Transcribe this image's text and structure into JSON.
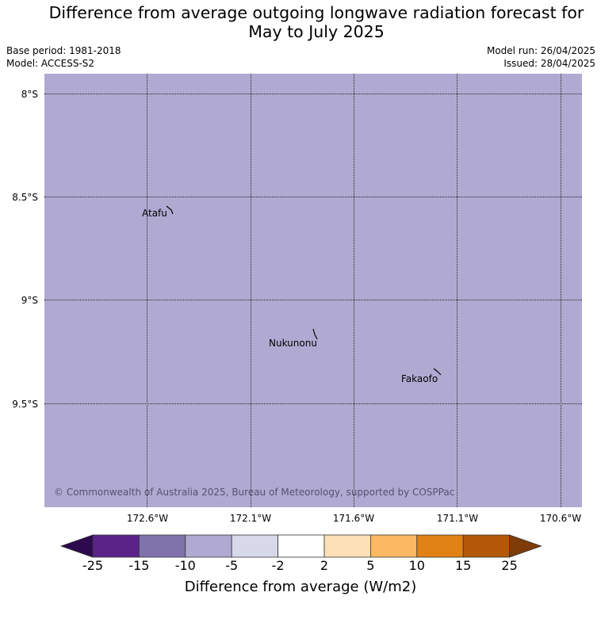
{
  "header": {
    "title_line1": "Difference from average outgoing longwave radiation forecast for",
    "title_line2": "May to July 2025",
    "base_period": "Base period: 1981-2018",
    "model": "Model: ACCESS-S2",
    "model_run": "Model run: 26/04/2025",
    "issued": "Issued: 28/04/2025"
  },
  "map": {
    "fill_color": "#b0aad2",
    "lat_labels": [
      "8°S",
      "8.5°S",
      "9°S",
      "9.5°S"
    ],
    "lon_labels": [
      "172.6°W",
      "172.1°W",
      "171.6°W",
      "171.1°W",
      "170.6°W"
    ],
    "places": [
      "Atafu",
      "Nukunonu",
      "Fakaofo"
    ],
    "copyright": "© Commonwealth of Australia 2025, Bureau of Meteorology, supported by COSPPac"
  },
  "colorbar": {
    "label": "Difference from average (W/m2)",
    "ticks": [
      "-25",
      "-15",
      "-10",
      "-5",
      "-2",
      "2",
      "5",
      "10",
      "15",
      "25"
    ],
    "colors": [
      "#2d0a4e",
      "#5a2388",
      "#8073ac",
      "#b0aad2",
      "#d8d8eb",
      "#ffffff",
      "#fee0b6",
      "#fdb863",
      "#e08214",
      "#b35806",
      "#7f3b08"
    ]
  }
}
